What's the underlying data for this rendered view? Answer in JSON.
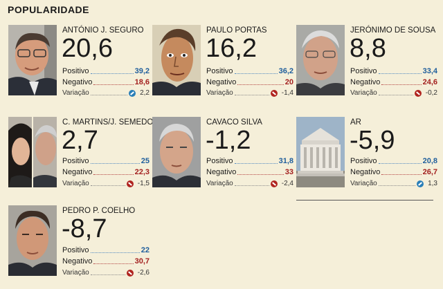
{
  "title": "POPULARIDADE",
  "labels": {
    "positive": "Positivo",
    "negative": "Negativo",
    "variation": "Variação"
  },
  "colors": {
    "positive": "#1f5e9c",
    "negative": "#a3201f",
    "background": "#f5efd9"
  },
  "cards": [
    {
      "name": "ANTÓNIO J. SEGURO",
      "score": "20,6",
      "positive": "39,2",
      "negative": "18,6",
      "variation": "2,2",
      "trend": "up"
    },
    {
      "name": "PAULO PORTAS",
      "score": "16,2",
      "positive": "36,2",
      "negative": "20",
      "variation": "-1,4",
      "trend": "down"
    },
    {
      "name": "JERÓNIMO DE SOUSA",
      "score": "8,8",
      "positive": "33,4",
      "negative": "24,6",
      "variation": "-0,2",
      "trend": "down"
    },
    {
      "name": "C. MARTINS/J. SEMEDO",
      "score": "2,7",
      "positive": "25",
      "negative": "22,3",
      "variation": "-1,5",
      "trend": "down"
    },
    {
      "name": "CAVACO SILVA",
      "score": "-1,2",
      "positive": "31,8",
      "negative": "33",
      "variation": "-2,4",
      "trend": "down"
    },
    {
      "name": "AR",
      "score": "-5,9",
      "positive": "20,8",
      "negative": "26,7",
      "variation": "1,3",
      "trend": "up"
    },
    {
      "name": "PEDRO P. COELHO",
      "score": "-8,7",
      "positive": "22",
      "negative": "30,7",
      "variation": "-2,6",
      "trend": "down"
    }
  ]
}
